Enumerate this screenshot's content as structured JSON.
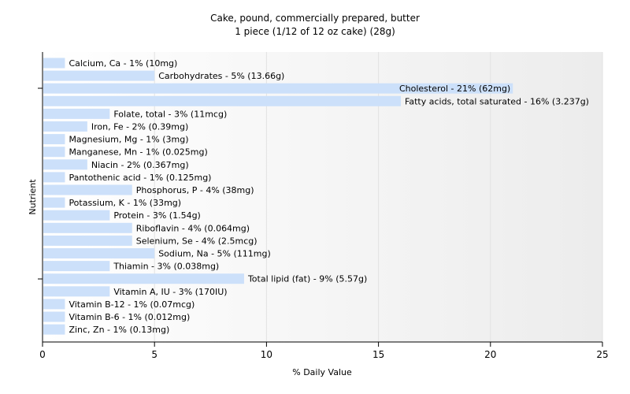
{
  "chart_data": {
    "type": "bar",
    "orientation": "horizontal",
    "title": "Cake, pound, commercially prepared, butter",
    "subtitle": "1 piece (1/12 of 12 oz cake) (28g)",
    "xlabel": "% Daily Value",
    "ylabel": "Nutrient",
    "xlim": [
      0,
      25
    ],
    "x_ticks": [
      0,
      5,
      10,
      15,
      20,
      25
    ],
    "grid": "vertical",
    "bar_color": "#cce0fa",
    "categories": [
      "Calcium, Ca",
      "Carbohydrates",
      "Cholesterol",
      "Fatty acids, total saturated",
      "Folate, total",
      "Iron, Fe",
      "Magnesium, Mg",
      "Manganese, Mn",
      "Niacin",
      "Pantothenic acid",
      "Phosphorus, P",
      "Potassium, K",
      "Protein",
      "Riboflavin",
      "Selenium, Se",
      "Sodium, Na",
      "Thiamin",
      "Total lipid (fat)",
      "Vitamin A, IU",
      "Vitamin B-12",
      "Vitamin B-6",
      "Zinc, Zn"
    ],
    "values": [
      1,
      5,
      21,
      16,
      3,
      2,
      1,
      1,
      2,
      1,
      4,
      1,
      3,
      4,
      4,
      5,
      3,
      9,
      3,
      1,
      1,
      1
    ],
    "data_labels": [
      "Calcium, Ca - 1% (10mg)",
      "Carbohydrates - 5% (13.66g)",
      "Cholesterol - 21% (62mg)",
      "Fatty acids, total saturated - 16% (3.237g)",
      "Folate, total - 3% (11mcg)",
      "Iron, Fe - 2% (0.39mg)",
      "Magnesium, Mg - 1% (3mg)",
      "Manganese, Mn - 1% (0.025mg)",
      "Niacin - 2% (0.367mg)",
      "Pantothenic acid - 1% (0.125mg)",
      "Phosphorus, P - 4% (38mg)",
      "Potassium, K - 1% (33mg)",
      "Protein - 3% (1.54g)",
      "Riboflavin - 4% (0.064mg)",
      "Selenium, Se - 4% (2.5mcg)",
      "Sodium, Na - 5% (111mg)",
      "Thiamin - 3% (0.038mg)",
      "Total lipid (fat) - 9% (5.57g)",
      "Vitamin A, IU - 3% (170IU)",
      "Vitamin B-12 - 1% (0.07mcg)",
      "Vitamin B-6 - 1% (0.012mg)",
      "Zinc, Zn - 1% (0.13mg)"
    ],
    "label_inside_bar": [
      false,
      false,
      true,
      false,
      false,
      false,
      false,
      false,
      false,
      false,
      false,
      false,
      false,
      false,
      false,
      false,
      false,
      false,
      false,
      false,
      false,
      false
    ]
  }
}
